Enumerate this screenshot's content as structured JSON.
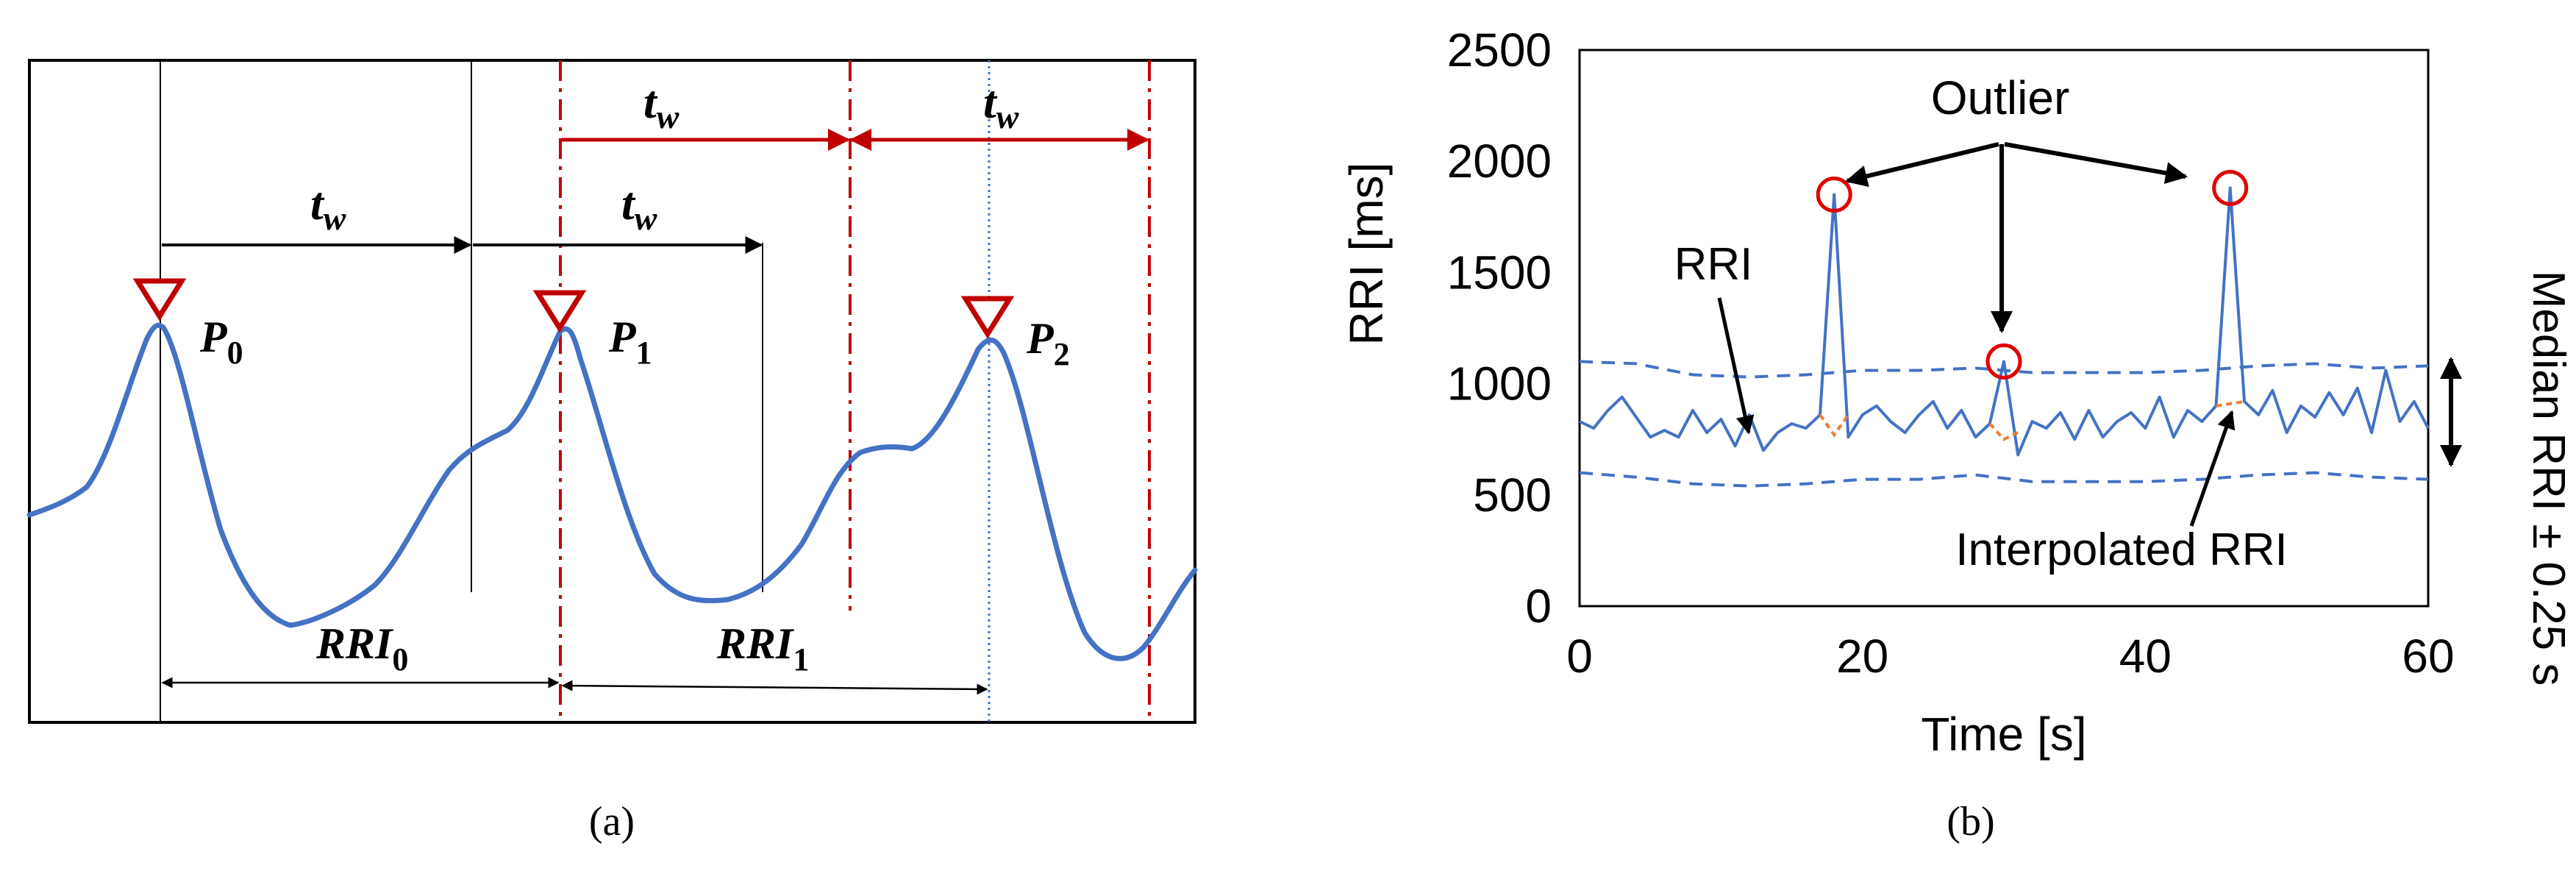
{
  "panel_a": {
    "peak_labels": [
      {
        "letter": "P",
        "sub": "0"
      },
      {
        "letter": "P",
        "sub": "1"
      },
      {
        "letter": "P",
        "sub": "2"
      }
    ],
    "window_labels": [
      {
        "letter": "t",
        "sub": "w"
      },
      {
        "letter": "t",
        "sub": "w"
      },
      {
        "letter": "t",
        "sub": "w"
      },
      {
        "letter": "t",
        "sub": "w"
      }
    ],
    "rri_labels": [
      {
        "letter": "RRI",
        "sub": "0"
      },
      {
        "letter": "RRI",
        "sub": "1"
      }
    ],
    "caption": "(a)",
    "colors": {
      "signal": "#4472c4",
      "window": "#c00000",
      "peak_marker": "#c00000",
      "axis": "#000000"
    }
  },
  "chart_data": [
    {
      "type": "line",
      "title": "",
      "xlabel": "Time [s]",
      "ylabel": "RRI [ms]",
      "right_label": "Median RRI ± 0.25 s",
      "xlim": [
        0,
        60
      ],
      "ylim": [
        0,
        2500
      ],
      "xticks": [
        "0",
        "20",
        "40",
        "60"
      ],
      "yticks": [
        "0",
        "500",
        "1000",
        "1500",
        "2000",
        "2500"
      ],
      "series": [
        {
          "name": "RRI",
          "x": [
            0,
            1,
            2,
            3,
            4,
            5,
            6,
            7,
            8,
            9,
            10,
            11,
            12,
            13,
            14,
            15,
            16,
            17,
            18,
            19,
            20,
            21,
            22,
            23,
            24,
            25,
            26,
            27,
            28,
            29,
            30,
            31,
            32,
            33,
            34,
            35,
            36,
            37,
            38,
            39,
            40,
            41,
            42,
            43,
            44,
            45,
            46,
            47,
            48,
            49,
            50,
            51,
            52,
            53,
            54,
            55,
            56,
            57,
            58,
            59,
            60
          ],
          "values": [
            830,
            800,
            880,
            940,
            850,
            760,
            790,
            760,
            880,
            780,
            840,
            720,
            860,
            700,
            780,
            820,
            800,
            860,
            1850,
            760,
            860,
            900,
            830,
            780,
            860,
            920,
            800,
            880,
            760,
            820,
            1100,
            680,
            830,
            800,
            870,
            750,
            880,
            760,
            830,
            870,
            800,
            940,
            760,
            880,
            830,
            900,
            1880,
            920,
            860,
            970,
            780,
            900,
            850,
            960,
            860,
            980,
            780,
            1060,
            830,
            920,
            800
          ]
        },
        {
          "name": "Median RRI + 0.25 s",
          "x": [
            0,
            4,
            8,
            12,
            16,
            20,
            24,
            28,
            32,
            36,
            40,
            44,
            48,
            52,
            56,
            60
          ],
          "values": [
            1100,
            1090,
            1040,
            1030,
            1040,
            1060,
            1060,
            1070,
            1050,
            1050,
            1050,
            1060,
            1080,
            1090,
            1070,
            1080
          ]
        },
        {
          "name": "Median RRI − 0.25 s",
          "x": [
            0,
            4,
            8,
            12,
            16,
            20,
            24,
            28,
            32,
            36,
            40,
            44,
            48,
            52,
            56,
            60
          ],
          "values": [
            600,
            580,
            550,
            540,
            550,
            570,
            570,
            590,
            560,
            560,
            560,
            570,
            590,
            600,
            580,
            570
          ]
        },
        {
          "name": "Interpolated RRI",
          "segments": [
            {
              "x": [
                17,
                18,
                19
              ],
              "values": [
                860,
                770,
                860
              ]
            },
            {
              "x": [
                29,
                30,
                31
              ],
              "values": [
                820,
                750,
                780
              ]
            },
            {
              "x": [
                45,
                46,
                47
              ],
              "values": [
                900,
                910,
                920
              ]
            }
          ]
        }
      ],
      "outliers": [
        {
          "x": 18,
          "y": 1850
        },
        {
          "x": 30,
          "y": 1100
        },
        {
          "x": 46,
          "y": 1880
        }
      ],
      "annotations": [
        {
          "text": "Outlier"
        },
        {
          "text": "RRI"
        },
        {
          "text": "Interpolated RRI"
        }
      ],
      "colors": {
        "rri": "#4472c4",
        "band": "#4472c4",
        "interpolated": "#ed7d31",
        "outlier": "#e00000"
      },
      "caption": "(b)"
    }
  ]
}
